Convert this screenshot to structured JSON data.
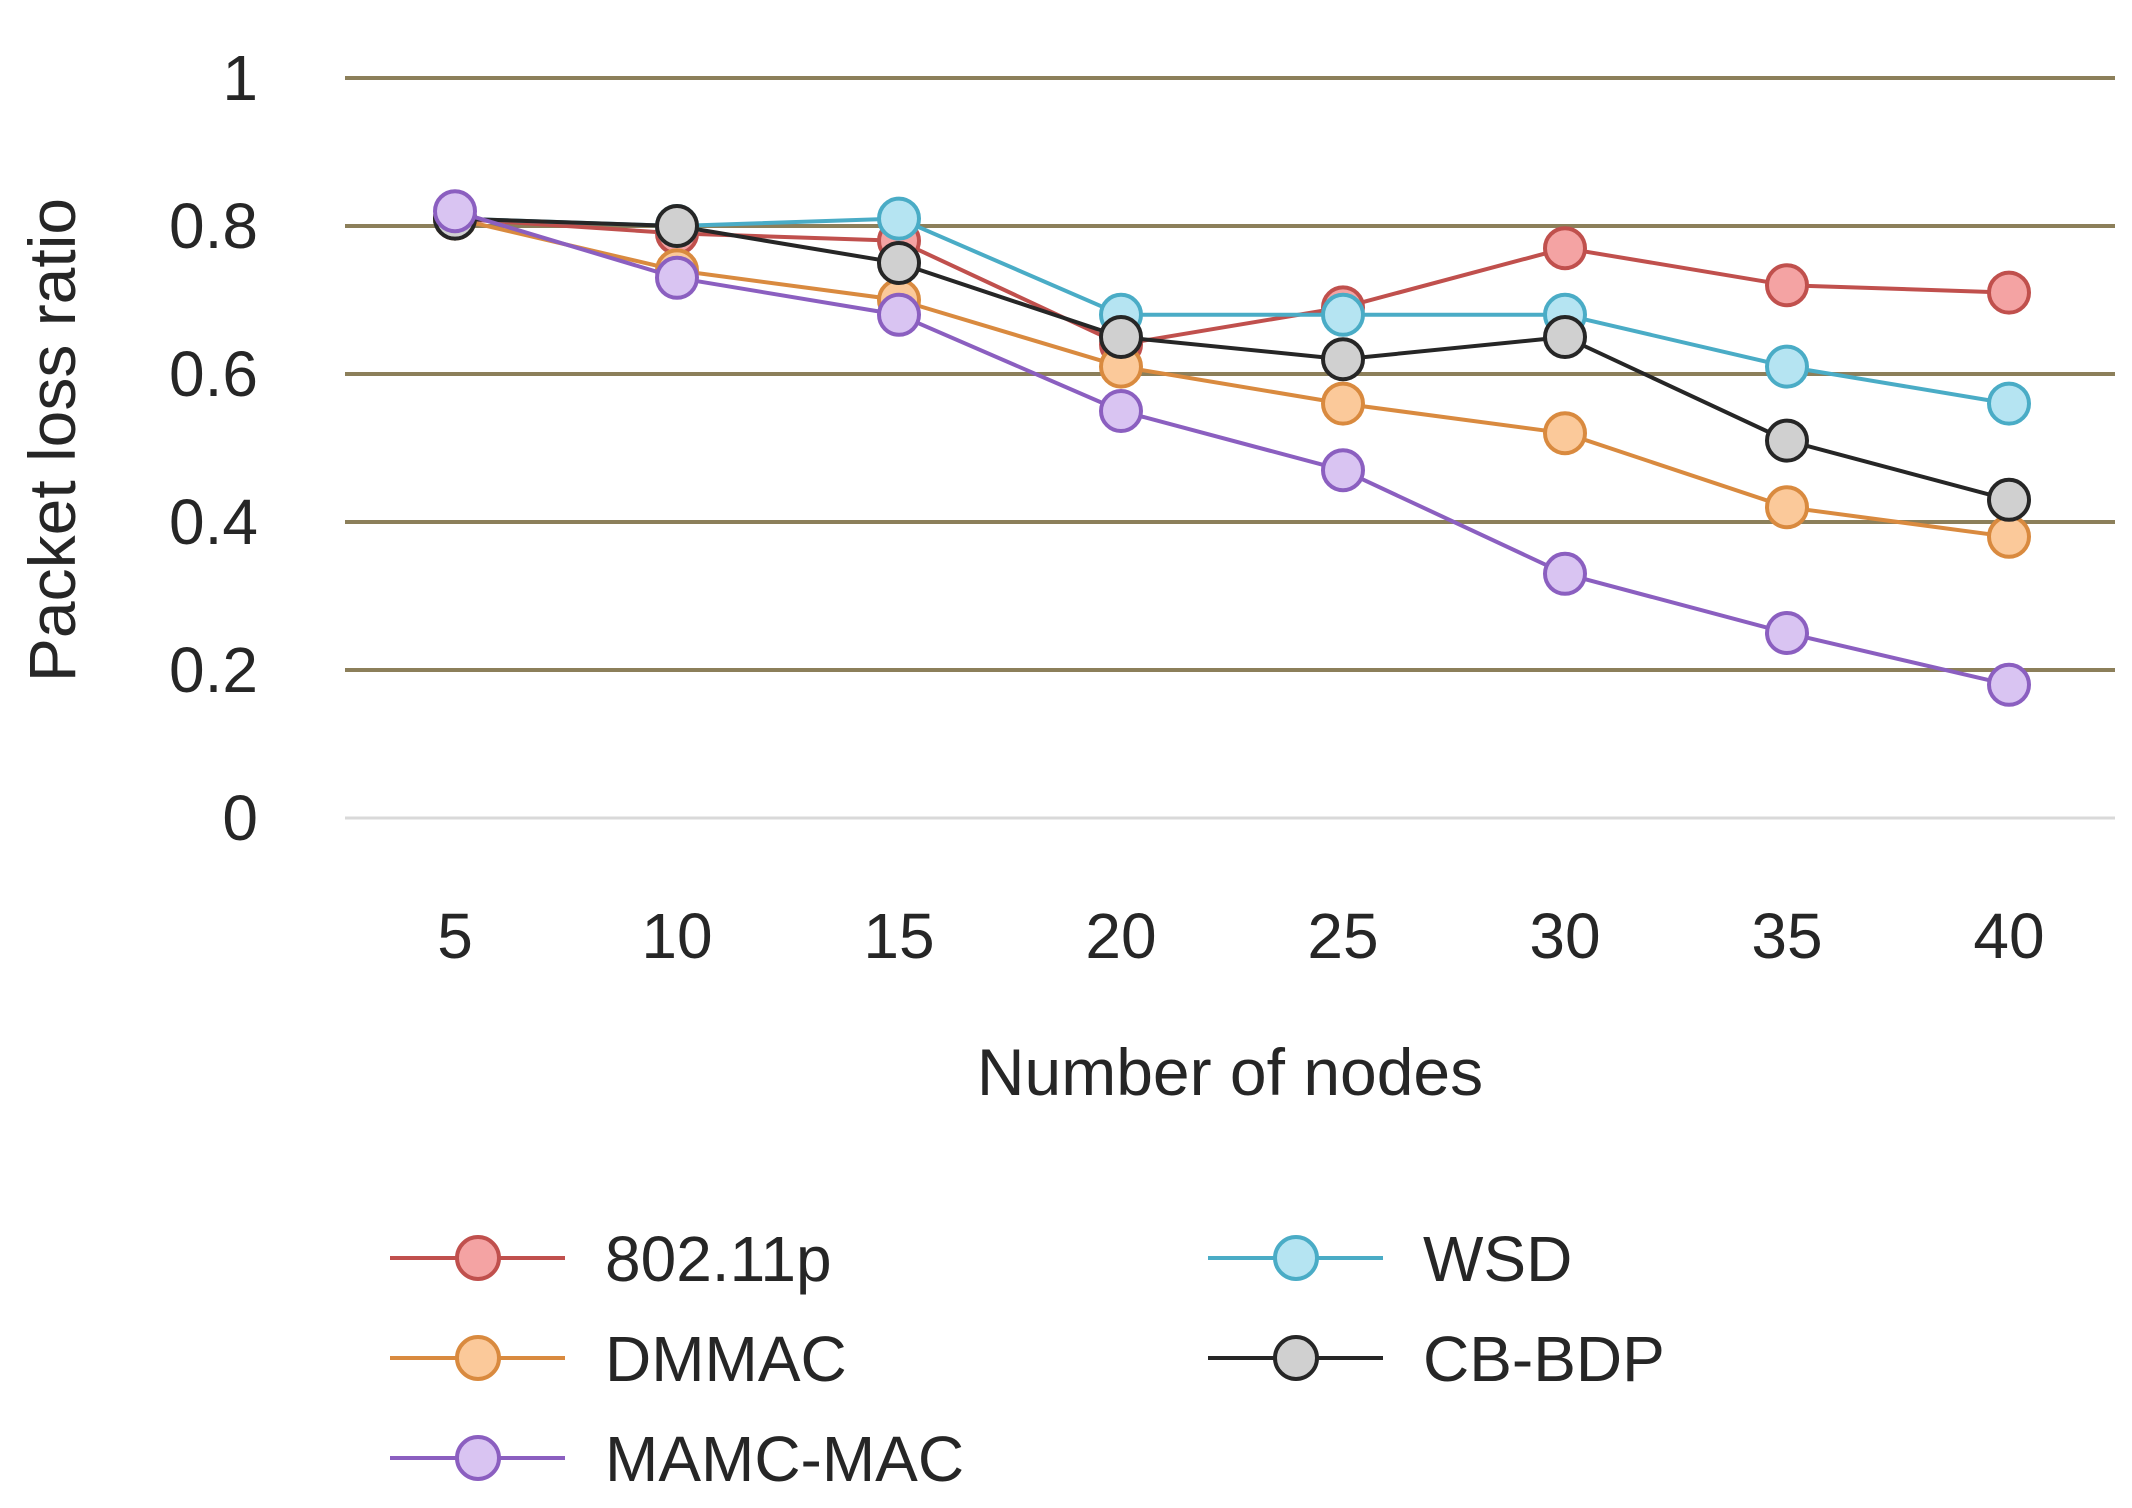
{
  "chart_data": {
    "type": "line",
    "title": "",
    "xlabel": "Number of nodes",
    "ylabel": "Packet loss ratio",
    "categories": [
      "5",
      "10",
      "15",
      "20",
      "25",
      "30",
      "35",
      "40"
    ],
    "ylim": [
      0,
      1
    ],
    "yticks": [
      0,
      0.2,
      0.4,
      0.6,
      0.8,
      1
    ],
    "ytick_labels": [
      "0",
      "0.2",
      "0.4",
      "0.6",
      "0.8",
      "1"
    ],
    "grid": true,
    "legend_position": "bottom",
    "series": [
      {
        "name": "802.11p",
        "color": "#c0504d",
        "fill": "#f4a3a3",
        "values": [
          0.81,
          0.79,
          0.78,
          0.64,
          0.69,
          0.77,
          0.72,
          0.71
        ]
      },
      {
        "name": "WSD",
        "color": "#4aacc6",
        "fill": "#b5e4f2",
        "values": [
          0.81,
          0.8,
          0.81,
          0.68,
          0.68,
          0.68,
          0.61,
          0.56
        ]
      },
      {
        "name": "DMMAC",
        "color": "#d98a3f",
        "fill": "#fbc99a",
        "values": [
          0.81,
          0.74,
          0.7,
          0.61,
          0.56,
          0.52,
          0.42,
          0.38
        ]
      },
      {
        "name": "CB-BDP",
        "color": "#262626",
        "fill": "#d0d0d0",
        "values": [
          0.81,
          0.8,
          0.75,
          0.65,
          0.62,
          0.65,
          0.51,
          0.43
        ]
      },
      {
        "name": "MAMC-MAC",
        "color": "#8b5fc0",
        "fill": "#d9c4f2",
        "values": [
          0.82,
          0.73,
          0.68,
          0.55,
          0.47,
          0.33,
          0.25,
          0.18
        ]
      }
    ]
  }
}
